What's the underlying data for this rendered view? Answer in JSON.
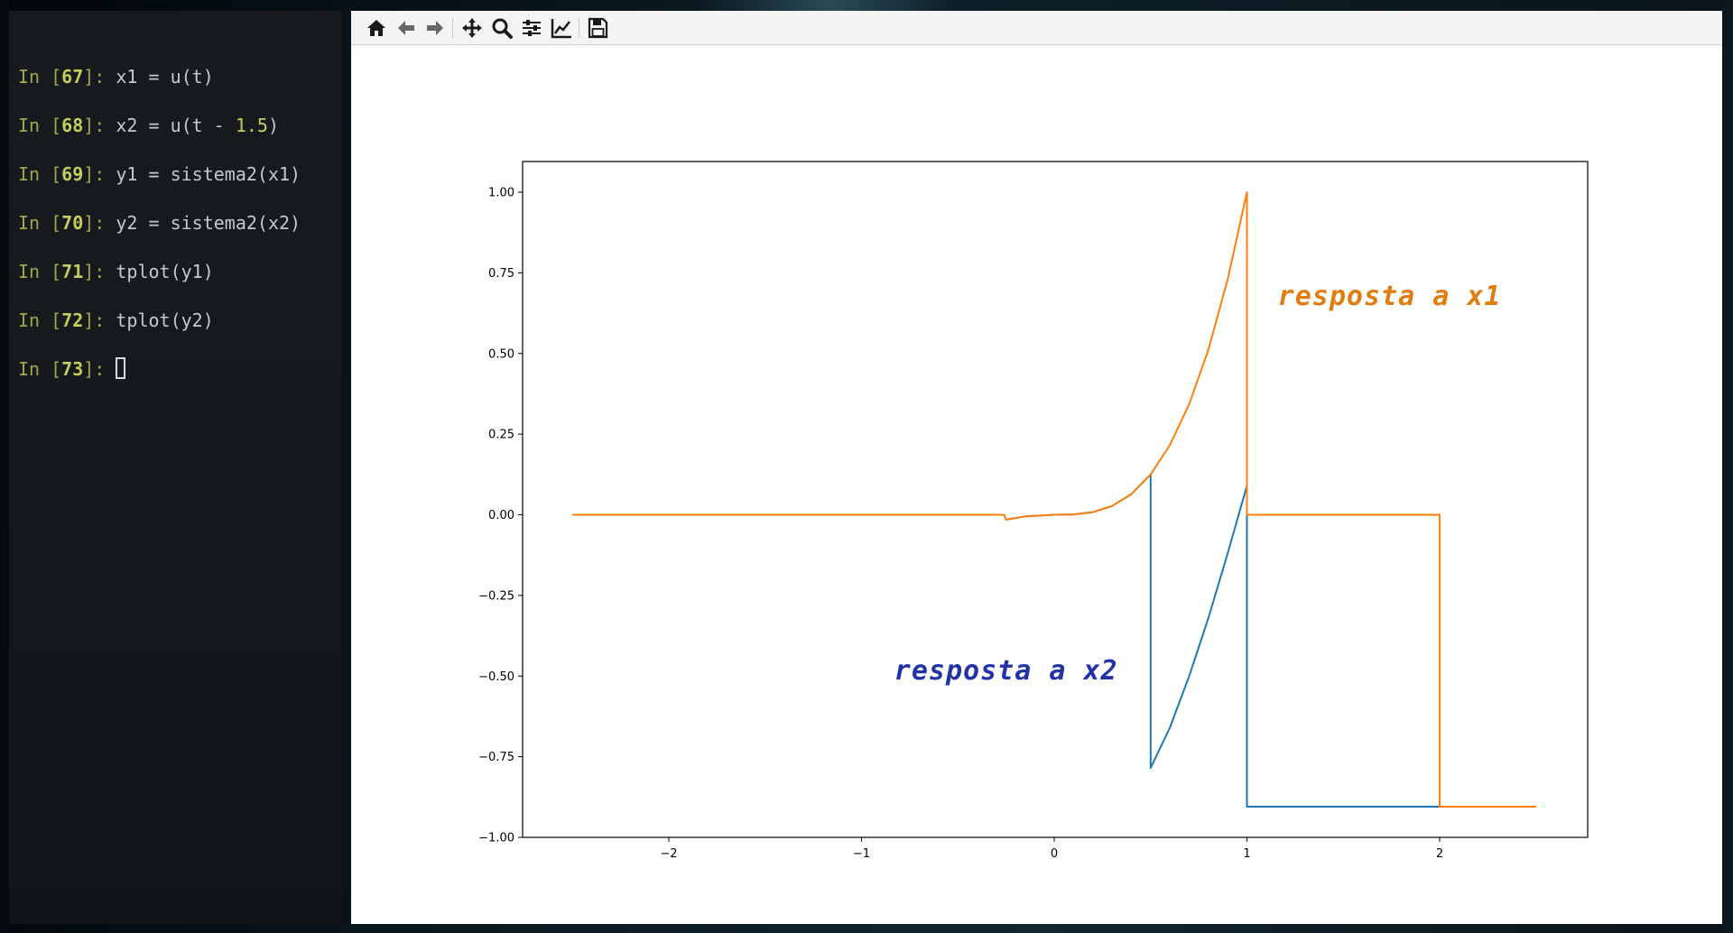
{
  "terminal": {
    "lines": [
      {
        "prompt": "In [",
        "num": "67",
        "sep": "]: ",
        "code": "x1 = u(t)",
        "lit": "",
        "tail": ""
      },
      {
        "prompt": "In [",
        "num": "68",
        "sep": "]: ",
        "code": "x2 = u(t - ",
        "lit": "1.5",
        "tail": ")"
      },
      {
        "prompt": "In [",
        "num": "69",
        "sep": "]: ",
        "code": "y1 = sistema2(x1)",
        "lit": "",
        "tail": ""
      },
      {
        "prompt": "In [",
        "num": "70",
        "sep": "]: ",
        "code": "y2 = sistema2(x2)",
        "lit": "",
        "tail": ""
      },
      {
        "prompt": "In [",
        "num": "71",
        "sep": "]: ",
        "code": "tplot(y1)",
        "lit": "",
        "tail": ""
      },
      {
        "prompt": "In [",
        "num": "72",
        "sep": "]: ",
        "code": "tplot(y2)",
        "lit": "",
        "tail": ""
      },
      {
        "prompt": "In [",
        "num": "73",
        "sep": "]: ",
        "code": "",
        "lit": "",
        "tail": ""
      }
    ]
  },
  "toolbar": {
    "buttons": [
      "home-icon",
      "back-arrow-icon",
      "forward-arrow-icon",
      "pan-icon",
      "zoom-icon",
      "subplots-config-icon",
      "edit-axes-icon",
      "save-icon"
    ]
  },
  "chart_data": {
    "type": "line",
    "title": "",
    "xlabel": "",
    "ylabel": "",
    "xlim": [
      -2.75,
      2.75
    ],
    "ylim": [
      -1.0,
      1.1
    ],
    "x_ticks": [
      -2,
      -1,
      0,
      1,
      2
    ],
    "x_tick_labels": [
      "−2",
      "−1",
      "0",
      "1",
      "2"
    ],
    "y_ticks": [
      1.0,
      0.75,
      0.5,
      0.25,
      0.0,
      -0.25,
      -0.5,
      -0.75,
      -1.0
    ],
    "y_tick_labels": [
      "1.00",
      "0.75",
      "0.50",
      "0.25",
      "0.00",
      "−0.25",
      "−0.50",
      "−0.75",
      "−1.00"
    ],
    "grid": false,
    "series": [
      {
        "color": "#1f77b4",
        "x": [
          -2.5,
          -0.26,
          -0.25,
          -0.15,
          0.0,
          0.1,
          0.2,
          0.3,
          0.4,
          0.5,
          0.5,
          0.6,
          0.7,
          0.8,
          0.9,
          1.0,
          1.0,
          2.0,
          2.5
        ],
        "y": [
          0.0,
          0.0,
          -0.015,
          -0.005,
          0.0,
          0.001,
          0.008,
          0.027,
          0.064,
          0.125,
          -0.785,
          -0.66,
          -0.5,
          -0.32,
          -0.12,
          0.09,
          -0.905,
          -0.905,
          -0.905
        ]
      },
      {
        "color": "#ff7f0e",
        "x": [
          -2.5,
          -0.26,
          -0.25,
          -0.15,
          0.0,
          0.1,
          0.2,
          0.3,
          0.4,
          0.5,
          0.6,
          0.7,
          0.8,
          0.9,
          1.0,
          1.0,
          2.0,
          2.0,
          2.5
        ],
        "y": [
          0.0,
          0.0,
          -0.015,
          -0.005,
          0.0,
          0.001,
          0.008,
          0.027,
          0.064,
          0.125,
          0.216,
          0.343,
          0.512,
          0.729,
          1.0,
          0.0,
          0.0,
          -0.905,
          -0.905
        ]
      }
    ],
    "annotations": [
      {
        "text": "resposta a x1",
        "x": 1.16,
        "y": 0.65,
        "color": "#e07d10"
      },
      {
        "text": "resposta a x2",
        "x": -0.83,
        "y": -0.51,
        "color": "#2233a8"
      }
    ]
  }
}
